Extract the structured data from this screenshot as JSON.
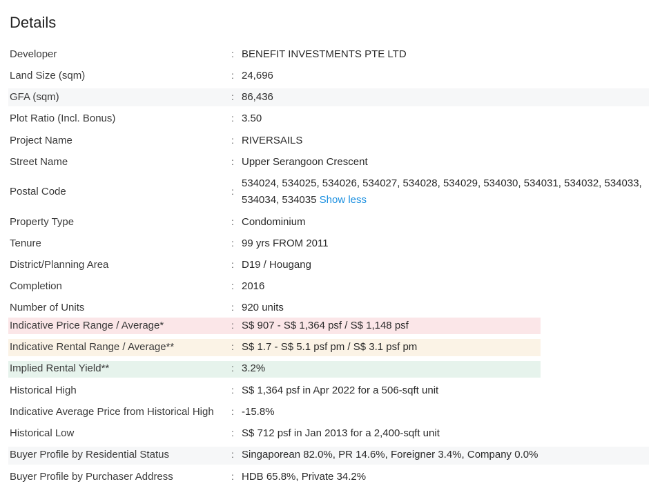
{
  "header": {
    "title": "Details"
  },
  "colors": {
    "price_band": "#fbe6e8",
    "rental_band": "#fbf3e6",
    "yield_band": "#e6f3ec",
    "stripe": "#f6f7f8",
    "link": "#1a8fe0"
  },
  "separator": ":",
  "details": [
    {
      "label": "Developer",
      "value": "BENEFIT INVESTMENTS PTE LTD"
    },
    {
      "label": "Land Size (sqm)",
      "value": "24,696"
    },
    {
      "label": "GFA (sqm)",
      "value": "86,436"
    },
    {
      "label": "Plot Ratio (Incl. Bonus)",
      "value": "3.50"
    },
    {
      "label": "Project Name",
      "value": "RIVERSAILS"
    },
    {
      "label": "Street Name",
      "value": "Upper Serangoon Crescent"
    },
    {
      "label": "Postal Code",
      "value": "534024, 534025, 534026, 534027, 534028, 534029, 534030, 534031, 534032, 534033, 534034, 534035",
      "link": "Show less"
    },
    {
      "label": "Property Type",
      "value": "Condominium"
    },
    {
      "label": "Tenure",
      "value": "99 yrs FROM 2011"
    },
    {
      "label": "District/Planning Area",
      "value": "D19 / Hougang"
    },
    {
      "label": "Completion",
      "value": "2016"
    },
    {
      "label": "Number of Units",
      "value": "920 units"
    },
    {
      "label": "Indicative Price Range / Average*",
      "value": "S$ 907 - S$ 1,364 psf / S$ 1,148 psf"
    },
    {
      "label": "Indicative Rental Range / Average**",
      "value": "S$ 1.7 - S$ 5.1 psf pm / S$ 3.1 psf pm"
    },
    {
      "label": "Implied Rental Yield**",
      "value": "3.2%"
    },
    {
      "label": "Historical High",
      "value": "S$ 1,364 psf in Apr 2022 for a 506-sqft unit"
    },
    {
      "label": "Indicative Average Price from Historical High",
      "value": "-15.8%"
    },
    {
      "label": "Historical Low",
      "value": "S$ 712 psf in Jan 2013 for a 2,400-sqft unit"
    },
    {
      "label": "Buyer Profile by Residential Status",
      "value": "Singaporean 82.0%, PR 14.6%, Foreigner 3.4%, Company 0.0%"
    },
    {
      "label": "Buyer Profile by Purchaser Address",
      "value": "HDB 65.8%, Private 34.2%"
    }
  ]
}
